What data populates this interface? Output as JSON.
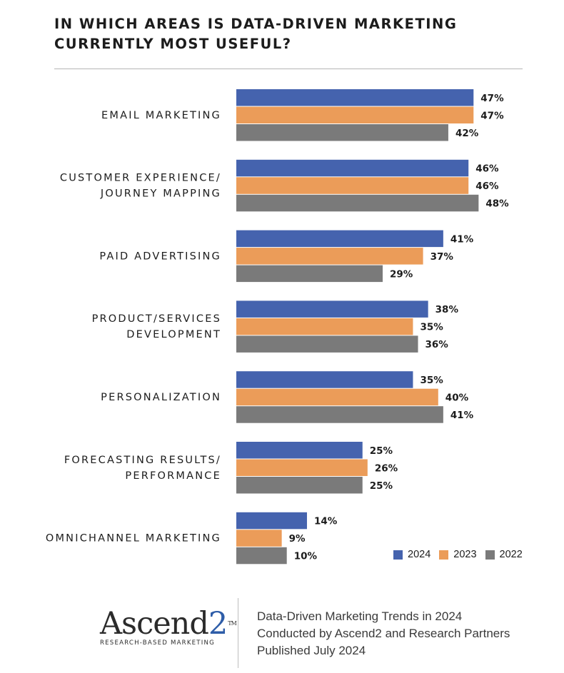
{
  "chart_data": {
    "type": "bar",
    "orientation": "horizontal",
    "title": "IN WHICH AREAS IS DATA-DRIVEN MARKETING CURRENTLY MOST USEFUL?",
    "title_lines": [
      "IN WHICH AREAS IS DATA-DRIVEN MARKETING",
      "CURRENTLY MOST USEFUL?"
    ],
    "categories": [
      [
        "EMAIL MARKETING"
      ],
      [
        "CUSTOMER EXPERIENCE/",
        "JOURNEY MAPPING"
      ],
      [
        "PAID ADVERTISING"
      ],
      [
        "PRODUCT/SERVICES",
        "DEVELOPMENT"
      ],
      [
        "PERSONALIZATION"
      ],
      [
        "FORECASTING RESULTS/",
        "PERFORMANCE"
      ],
      [
        "OMNICHANNEL MARKETING"
      ]
    ],
    "series": [
      {
        "name": "2024",
        "color": "#4563ae",
        "values": [
          47,
          46,
          41,
          38,
          35,
          25,
          14
        ]
      },
      {
        "name": "2023",
        "color": "#eb9c59",
        "values": [
          47,
          46,
          37,
          35,
          40,
          26,
          9
        ]
      },
      {
        "name": "2022",
        "color": "#7a7a7a",
        "values": [
          42,
          48,
          29,
          36,
          41,
          25,
          10
        ]
      }
    ],
    "value_suffix": "%",
    "xlim": [
      0,
      100
    ],
    "grid": false,
    "legend_position": "bottom-right"
  },
  "legend": {
    "items": [
      {
        "label": "2024",
        "color": "#4563ae"
      },
      {
        "label": "2023",
        "color": "#eb9c59"
      },
      {
        "label": "2022",
        "color": "#7a7a7a"
      }
    ]
  },
  "footer": {
    "logo_word": "Ascend",
    "logo_digit": "2",
    "logo_tm": "TM",
    "logo_tagline": "RESEARCH-BASED MARKETING",
    "line1": "Data-Driven Marketing Trends in 2024",
    "line2": "Conducted by Ascend2 and Research Partners",
    "line3": "Published July 2024"
  }
}
